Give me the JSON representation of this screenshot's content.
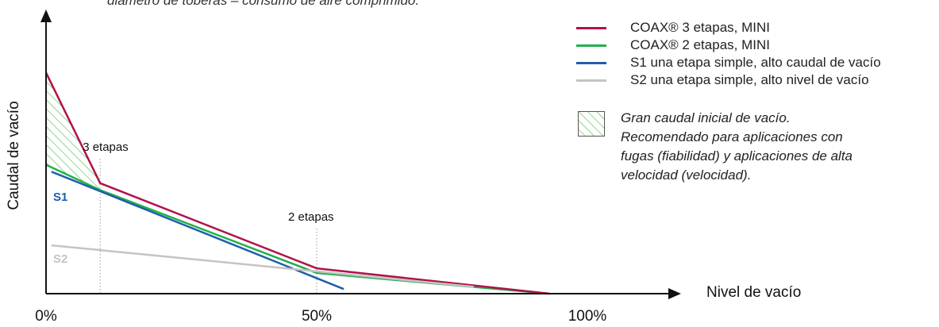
{
  "top_note": "diámetro de toberas – consumo de aire comprimido.",
  "legend": [
    {
      "label": "COAX® 3 etapas, MINI",
      "color": "#b0124a"
    },
    {
      "label": "COAX® 2 etapas, MINI",
      "color": "#22b04a"
    },
    {
      "label": "S1 una etapa simple, alto caudal de vacío",
      "color": "#1f5fa8"
    },
    {
      "label": "S2 una etapa simple, alto nivel de vacío",
      "color": "#c4c4c4"
    }
  ],
  "hatch_note": [
    "Gran caudal inicial de vacío.",
    "Recomendado para aplicaciones con",
    "fugas (fiabilidad) y aplicaciones de alta",
    "velocidad (velocidad)."
  ],
  "chart_data": {
    "type": "line",
    "xlabel": "Nivel de vacío",
    "ylabel": "Caudal de vacío",
    "xticks": [
      "0%",
      "50%",
      "100%"
    ],
    "xlim": [
      0,
      100
    ],
    "ylim": [
      0,
      100
    ],
    "series": [
      {
        "name": "COAX® 3 etapas, MINI",
        "color": "#b0124a",
        "x": [
          0,
          10,
          50,
          93
        ],
        "y": [
          96,
          48,
          11,
          0
        ]
      },
      {
        "name": "COAX® 2 etapas, MINI",
        "color": "#22b04a",
        "x": [
          0,
          10,
          50,
          93
        ],
        "y": [
          56,
          45,
          9,
          0
        ]
      },
      {
        "name": "S1",
        "color": "#1f5fa8",
        "x": [
          1,
          55
        ],
        "y": [
          53,
          2
        ]
      },
      {
        "name": "S2",
        "color": "#c4c4c4",
        "x": [
          1,
          79
        ],
        "y": [
          21,
          3
        ]
      }
    ],
    "annotations": [
      {
        "label": "3 etapas",
        "x": 10
      },
      {
        "label": "2 etapas",
        "x": 50
      }
    ],
    "series_labels": [
      {
        "label": "S1",
        "color": "#1f5fa8"
      },
      {
        "label": "S2",
        "color": "#c4c4c4"
      }
    ]
  }
}
